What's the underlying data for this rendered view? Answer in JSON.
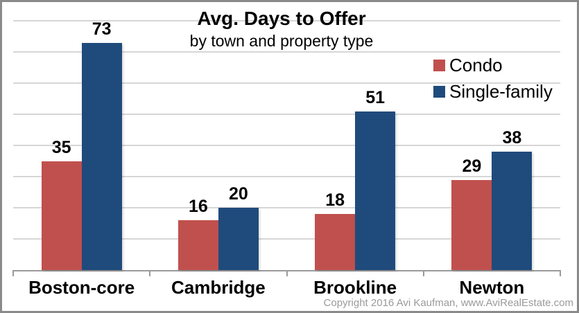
{
  "chart_data": {
    "type": "bar",
    "title": "Avg. Days to Offer",
    "subtitle": "by town and property type",
    "categories": [
      "Boston-core",
      "Cambridge",
      "Brookline",
      "Newton"
    ],
    "series": [
      {
        "name": "Condo",
        "color": "#C0504D",
        "values": [
          35,
          16,
          18,
          29
        ]
      },
      {
        "name": "Single-family",
        "color": "#1F4B7C",
        "values": [
          73,
          20,
          51,
          38
        ]
      }
    ],
    "xlabel": "",
    "ylabel": "",
    "ylim": [
      0,
      80
    ],
    "gridline_step": 10,
    "grid": true,
    "y_tick_labels_visible": false,
    "data_labels": true,
    "legend_position": "top-right"
  },
  "colors": {
    "gridline": "#d6d6d6",
    "axis": "#9a9a9a",
    "frame_border": "#8a8a8a",
    "text": "#000000",
    "copyright_text": "#9a9a9a",
    "background": "#ffffff"
  },
  "footer": {
    "copyright": "Copyright 2016 Avi Kaufman, www.AviRealEstate.com"
  }
}
